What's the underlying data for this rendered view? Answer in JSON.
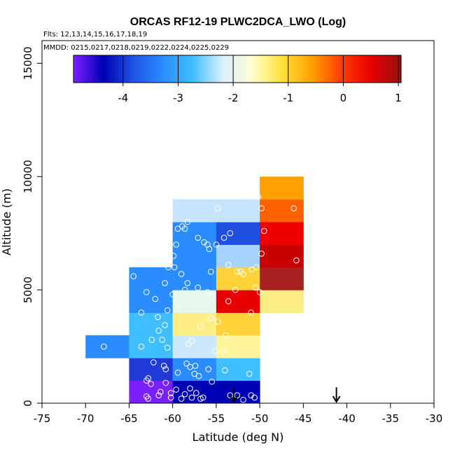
{
  "chart_data": {
    "type": "heatmap",
    "title": "ORCAS RF12-19 PLWC2DCA_LWO (Log)",
    "subtitle_flights": "Flts: 12,13,14,15,16,17,18,19",
    "subtitle_dates": "MMDD: 0215,0217,0218,0219,0222,0224,0225,0229",
    "xlabel": "Latitude (deg N)",
    "ylabel": "Altitude (m)",
    "xlim": [
      -75,
      -30
    ],
    "ylim": [
      0,
      16000
    ],
    "x_ticks": [
      -75,
      -70,
      -65,
      -60,
      -55,
      -50,
      -45,
      -40,
      -35,
      -30
    ],
    "x_tick_labels": [
      "-75",
      "-70",
      "-65",
      "-60",
      "-55",
      "-50",
      "-45",
      "-40",
      "-35",
      "-30"
    ],
    "y_ticks": [
      0,
      5000,
      10000,
      15000
    ],
    "y_tick_labels": [
      "0",
      "5000",
      "10000",
      "15000"
    ],
    "colorbar": {
      "range": [
        -4.9,
        1.05
      ],
      "ticks": [
        -4,
        -3,
        -2,
        -1,
        0,
        1
      ],
      "tick_labels": [
        "-4",
        "-3",
        "-2",
        "-1",
        "0",
        "1"
      ],
      "colormap": [
        "#7c1fff",
        "#0000b4",
        "#1f53e6",
        "#2b8cff",
        "#3fbfff",
        "#d8eeff",
        "#ffffd0",
        "#ffe13a",
        "#ffa000",
        "#ff3c00",
        "#e60000",
        "#9a1010"
      ]
    },
    "cells": [
      {
        "x0": -70,
        "x1": -65,
        "y0": 2000,
        "y1": 3000,
        "value": -3.0
      },
      {
        "x0": -65,
        "x1": -60,
        "y0": 0,
        "y1": 1000,
        "value": -4.7
      },
      {
        "x0": -65,
        "x1": -60,
        "y0": 1000,
        "y1": 2000,
        "value": -3.8
      },
      {
        "x0": -65,
        "x1": -60,
        "y0": 2000,
        "y1": 3000,
        "value": -2.8
      },
      {
        "x0": -65,
        "x1": -60,
        "y0": 3000,
        "y1": 4000,
        "value": -2.8
      },
      {
        "x0": -65,
        "x1": -60,
        "y0": 4000,
        "y1": 5000,
        "value": -3.0
      },
      {
        "x0": -65,
        "x1": -60,
        "y0": 5000,
        "y1": 6000,
        "value": -2.8
      },
      {
        "x0": -60,
        "x1": -55,
        "y0": 0,
        "y1": 1000,
        "value": -4.4
      },
      {
        "x0": -60,
        "x1": -55,
        "y0": 1000,
        "y1": 2000,
        "value": -3.4
      },
      {
        "x0": -60,
        "x1": -55,
        "y0": 2000,
        "y1": 3000,
        "value": -2.2
      },
      {
        "x0": -60,
        "x1": -55,
        "y0": 3000,
        "y1": 4000,
        "value": -1.5
      },
      {
        "x0": -60,
        "x1": -55,
        "y0": 4000,
        "y1": 5000,
        "value": -2.0
      },
      {
        "x0": -60,
        "x1": -55,
        "y0": 5000,
        "y1": 6000,
        "value": -3.0
      },
      {
        "x0": -60,
        "x1": -55,
        "y0": 6000,
        "y1": 7000,
        "value": -3.0
      },
      {
        "x0": -60,
        "x1": -55,
        "y0": 7000,
        "y1": 8000,
        "value": -3.0
      },
      {
        "x0": -60,
        "x1": -55,
        "y0": 8000,
        "y1": 9000,
        "value": -2.2
      },
      {
        "x0": -55,
        "x1": -50,
        "y0": 0,
        "y1": 1000,
        "value": -4.4
      },
      {
        "x0": -55,
        "x1": -50,
        "y0": 1000,
        "y1": 2000,
        "value": -2.8
      },
      {
        "x0": -55,
        "x1": -50,
        "y0": 2000,
        "y1": 3000,
        "value": -1.5
      },
      {
        "x0": -55,
        "x1": -50,
        "y0": 3000,
        "y1": 4000,
        "value": -1.0
      },
      {
        "x0": -55,
        "x1": -50,
        "y0": 4000,
        "y1": 5000,
        "value": 0.3
      },
      {
        "x0": -55,
        "x1": -50,
        "y0": 5000,
        "y1": 6000,
        "value": -1.0
      },
      {
        "x0": -55,
        "x1": -50,
        "y0": 6000,
        "y1": 7000,
        "value": -2.3
      },
      {
        "x0": -55,
        "x1": -50,
        "y0": 7000,
        "y1": 8000,
        "value": -3.7
      },
      {
        "x0": -55,
        "x1": -50,
        "y0": 8000,
        "y1": 9000,
        "value": -2.2
      },
      {
        "x0": -50,
        "x1": -45,
        "y0": 4000,
        "y1": 5000,
        "value": -1.4
      },
      {
        "x0": -50,
        "x1": -45,
        "y0": 5000,
        "y1": 6000,
        "value": 0.9
      },
      {
        "x0": -50,
        "x1": -45,
        "y0": 6000,
        "y1": 7000,
        "value": 0.7
      },
      {
        "x0": -50,
        "x1": -45,
        "y0": 7000,
        "y1": 8000,
        "value": 0.2
      },
      {
        "x0": -50,
        "x1": -45,
        "y0": 8000,
        "y1": 9000,
        "value": -0.3
      },
      {
        "x0": -50,
        "x1": -45,
        "y0": 9000,
        "y1": 10000,
        "value": -0.6
      }
    ],
    "cell_colors": {
      "-70|2000": "#2b8cff",
      "-65|0": "#7c1fff",
      "-65|1000": "#1f3ad6",
      "-65|2000": "#3fbfff",
      "-65|3000": "#3fbfff",
      "-65|4000": "#2b8cff",
      "-65|5000": "#2b8cff",
      "-60|0": "#0000b4",
      "-60|1000": "#2b8cff",
      "-60|2000": "#cce8ff",
      "-60|3000": "#ffed85",
      "-60|4000": "#e6f7ee",
      "-60|5000": "#2b8cff",
      "-60|6000": "#2b8cff",
      "-60|7000": "#2b8cff",
      "-60|8000": "#c6e4ff",
      "-55|0": "#0000b4",
      "-55|1000": "#3fbfff",
      "-55|2000": "#fff49a",
      "-55|3000": "#ffd23a",
      "-55|4000": "#e60000",
      "-55|5000": "#ffd23a",
      "-55|6000": "#a6d2ff",
      "-55|7000": "#1f4fe0",
      "-55|8000": "#c6e4ff",
      "-50|4000": "#ffee84",
      "-50|5000": "#a82020",
      "-50|6000": "#c80000",
      "-50|7000": "#f00000",
      "-50|8000": "#ff6000",
      "-50|9000": "#ffa000"
    },
    "points": [
      [
        -67.9,
        2500
      ],
      [
        -64.5,
        5600
      ],
      [
        -63.0,
        4900
      ],
      [
        -62.0,
        4600
      ],
      [
        -60.6,
        4100
      ],
      [
        -61.7,
        3800
      ],
      [
        -63.6,
        4000
      ],
      [
        -61.6,
        3200
      ],
      [
        -60.9,
        3450
      ],
      [
        -62.4,
        2800
      ],
      [
        -63.6,
        2500
      ],
      [
        -60.6,
        2450
      ],
      [
        -62.2,
        1800
      ],
      [
        -61.0,
        1650
      ],
      [
        -60.8,
        1500
      ],
      [
        -62.8,
        1100
      ],
      [
        -63.0,
        1000
      ],
      [
        -62.5,
        850
      ],
      [
        -61.4,
        500
      ],
      [
        -60.2,
        450
      ],
      [
        -63.0,
        300
      ],
      [
        -62.8,
        200
      ],
      [
        -61.6,
        350
      ],
      [
        -60.8,
        900
      ],
      [
        -60.2,
        250
      ],
      [
        -59.6,
        600
      ],
      [
        -59.0,
        200
      ],
      [
        -58.6,
        400
      ],
      [
        -58.0,
        650
      ],
      [
        -57.8,
        250
      ],
      [
        -57.3,
        450
      ],
      [
        -56.8,
        200
      ],
      [
        -56.5,
        250
      ],
      [
        -55.5,
        950
      ],
      [
        -57.0,
        1200
      ],
      [
        -57.5,
        1300
      ],
      [
        -58.0,
        1600
      ],
      [
        -57.4,
        1650
      ],
      [
        -59.4,
        1350
      ],
      [
        -58.4,
        1750
      ],
      [
        -55.9,
        1500
      ],
      [
        -54.0,
        1450
      ],
      [
        -58.2,
        2600
      ],
      [
        -57.8,
        2750
      ],
      [
        -56.8,
        3400
      ],
      [
        -55.6,
        3750
      ],
      [
        -55.1,
        2300
      ],
      [
        -54.2,
        2300
      ],
      [
        -53.9,
        3000
      ],
      [
        -53.6,
        4500
      ],
      [
        -54.8,
        3600
      ],
      [
        -53.4,
        350
      ],
      [
        -52.6,
        350
      ],
      [
        -51.9,
        150
      ],
      [
        -51.2,
        1300
      ],
      [
        -51.0,
        350
      ],
      [
        -50.6,
        250
      ],
      [
        -52.8,
        5000
      ],
      [
        -52.6,
        5800
      ],
      [
        -51.0,
        4000
      ],
      [
        -50.5,
        5100
      ],
      [
        -50.4,
        6000
      ],
      [
        -50.9,
        5900
      ],
      [
        -49.8,
        6600
      ],
      [
        -49.5,
        7600
      ],
      [
        -49.8,
        8600
      ],
      [
        -50.2,
        9100
      ],
      [
        -46.1,
        8600
      ],
      [
        -45.8,
        6300
      ],
      [
        -50.0,
        4900
      ],
      [
        -55.5,
        4700
      ],
      [
        -56.0,
        4900
      ],
      [
        -57.1,
        5100
      ],
      [
        -58.3,
        5300
      ],
      [
        -59.0,
        5700
      ],
      [
        -59.8,
        6000
      ],
      [
        -60.5,
        6000
      ],
      [
        -60.9,
        5300
      ],
      [
        -59.9,
        6500
      ],
      [
        -59.6,
        7000
      ],
      [
        -58.6,
        7700
      ],
      [
        -59.4,
        7700
      ],
      [
        -58.9,
        7800
      ],
      [
        -58.3,
        8000
      ],
      [
        -57.1,
        7300
      ],
      [
        -56.4,
        7100
      ],
      [
        -56.0,
        7000
      ],
      [
        -55.8,
        6800
      ],
      [
        -55.0,
        7000
      ],
      [
        -54.1,
        7300
      ],
      [
        -53.4,
        7500
      ],
      [
        -53.6,
        6100
      ],
      [
        -52.2,
        5800
      ],
      [
        -51.9,
        5700
      ],
      [
        -54.8,
        8600
      ],
      [
        -55.6,
        5800
      ],
      [
        -58.6,
        5000
      ],
      [
        -59.4,
        4400
      ],
      [
        -60.0,
        4800
      ],
      [
        -61.2,
        2800
      ]
    ],
    "arrows": [
      {
        "x": -53.0,
        "y_top": 700,
        "y_bottom": 0
      },
      {
        "x": -41.2,
        "y_top": 700,
        "y_bottom": 0
      }
    ]
  }
}
